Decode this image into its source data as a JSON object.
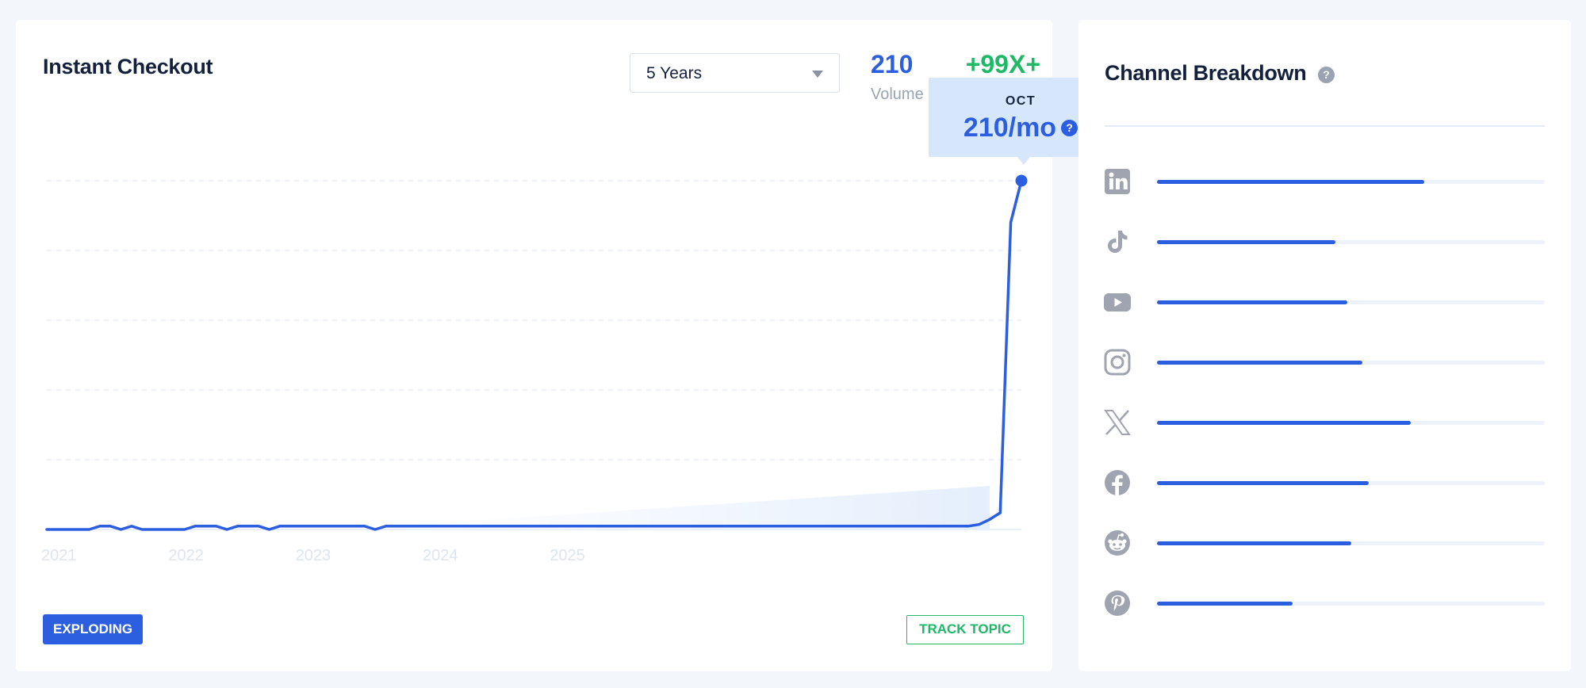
{
  "trend": {
    "title": "Instant Checkout",
    "range_value": "5 Years",
    "volume_value": "210",
    "volume_label": "Volume",
    "growth_value": "+99X+",
    "tooltip_month": "OCT",
    "tooltip_value": "210/mo",
    "help_glyph": "?",
    "badge_label": "EXPLODING",
    "track_label": "TRACK TOPIC"
  },
  "chart_data": {
    "type": "line",
    "x_tick_labels": [
      "2021",
      "2022",
      "2023",
      "2024",
      "2025"
    ],
    "x_start": 2020.917,
    "x_step": 0.0833333,
    "ylim": [
      0,
      210
    ],
    "grid": "horizontal-dashed",
    "line_color": "#2c5ee0",
    "values": [
      0,
      0,
      0,
      0,
      0,
      2,
      2,
      0,
      2,
      0,
      0,
      0,
      0,
      0,
      2,
      2,
      2,
      0,
      2,
      2,
      2,
      0,
      2,
      2,
      2,
      2,
      2,
      2,
      2,
      2,
      2,
      0,
      2,
      2,
      2,
      2,
      2,
      2,
      2,
      2,
      2,
      2,
      2,
      2,
      2,
      2,
      2,
      2,
      2,
      2,
      2,
      2,
      2,
      2,
      2,
      2,
      2,
      2,
      2,
      2,
      2,
      2,
      2,
      2,
      2,
      2,
      2,
      2,
      2,
      2,
      2,
      2,
      2,
      2,
      2,
      2,
      2,
      2,
      2,
      2,
      2,
      2,
      2,
      2,
      2,
      2,
      2,
      2,
      3,
      6,
      10,
      185,
      210
    ]
  },
  "channels": {
    "title": "Channel Breakdown",
    "items": [
      {
        "name": "LinkedIn",
        "icon": "linkedin-icon",
        "share": 0.69
      },
      {
        "name": "TikTok",
        "icon": "tiktok-icon",
        "share": 0.46
      },
      {
        "name": "YouTube",
        "icon": "youtube-icon",
        "share": 0.49
      },
      {
        "name": "Instagram",
        "icon": "instagram-icon",
        "share": 0.53
      },
      {
        "name": "X",
        "icon": "x-icon",
        "share": 0.655
      },
      {
        "name": "Facebook",
        "icon": "facebook-icon",
        "share": 0.545
      },
      {
        "name": "Reddit",
        "icon": "reddit-icon",
        "share": 0.5
      },
      {
        "name": "Pinterest",
        "icon": "pinterest-icon",
        "share": 0.35
      }
    ]
  },
  "colors": {
    "accent": "#2c5ee0",
    "growth": "#1fb866",
    "muted": "#9aa3b2",
    "icon": "#a0a4b0"
  }
}
